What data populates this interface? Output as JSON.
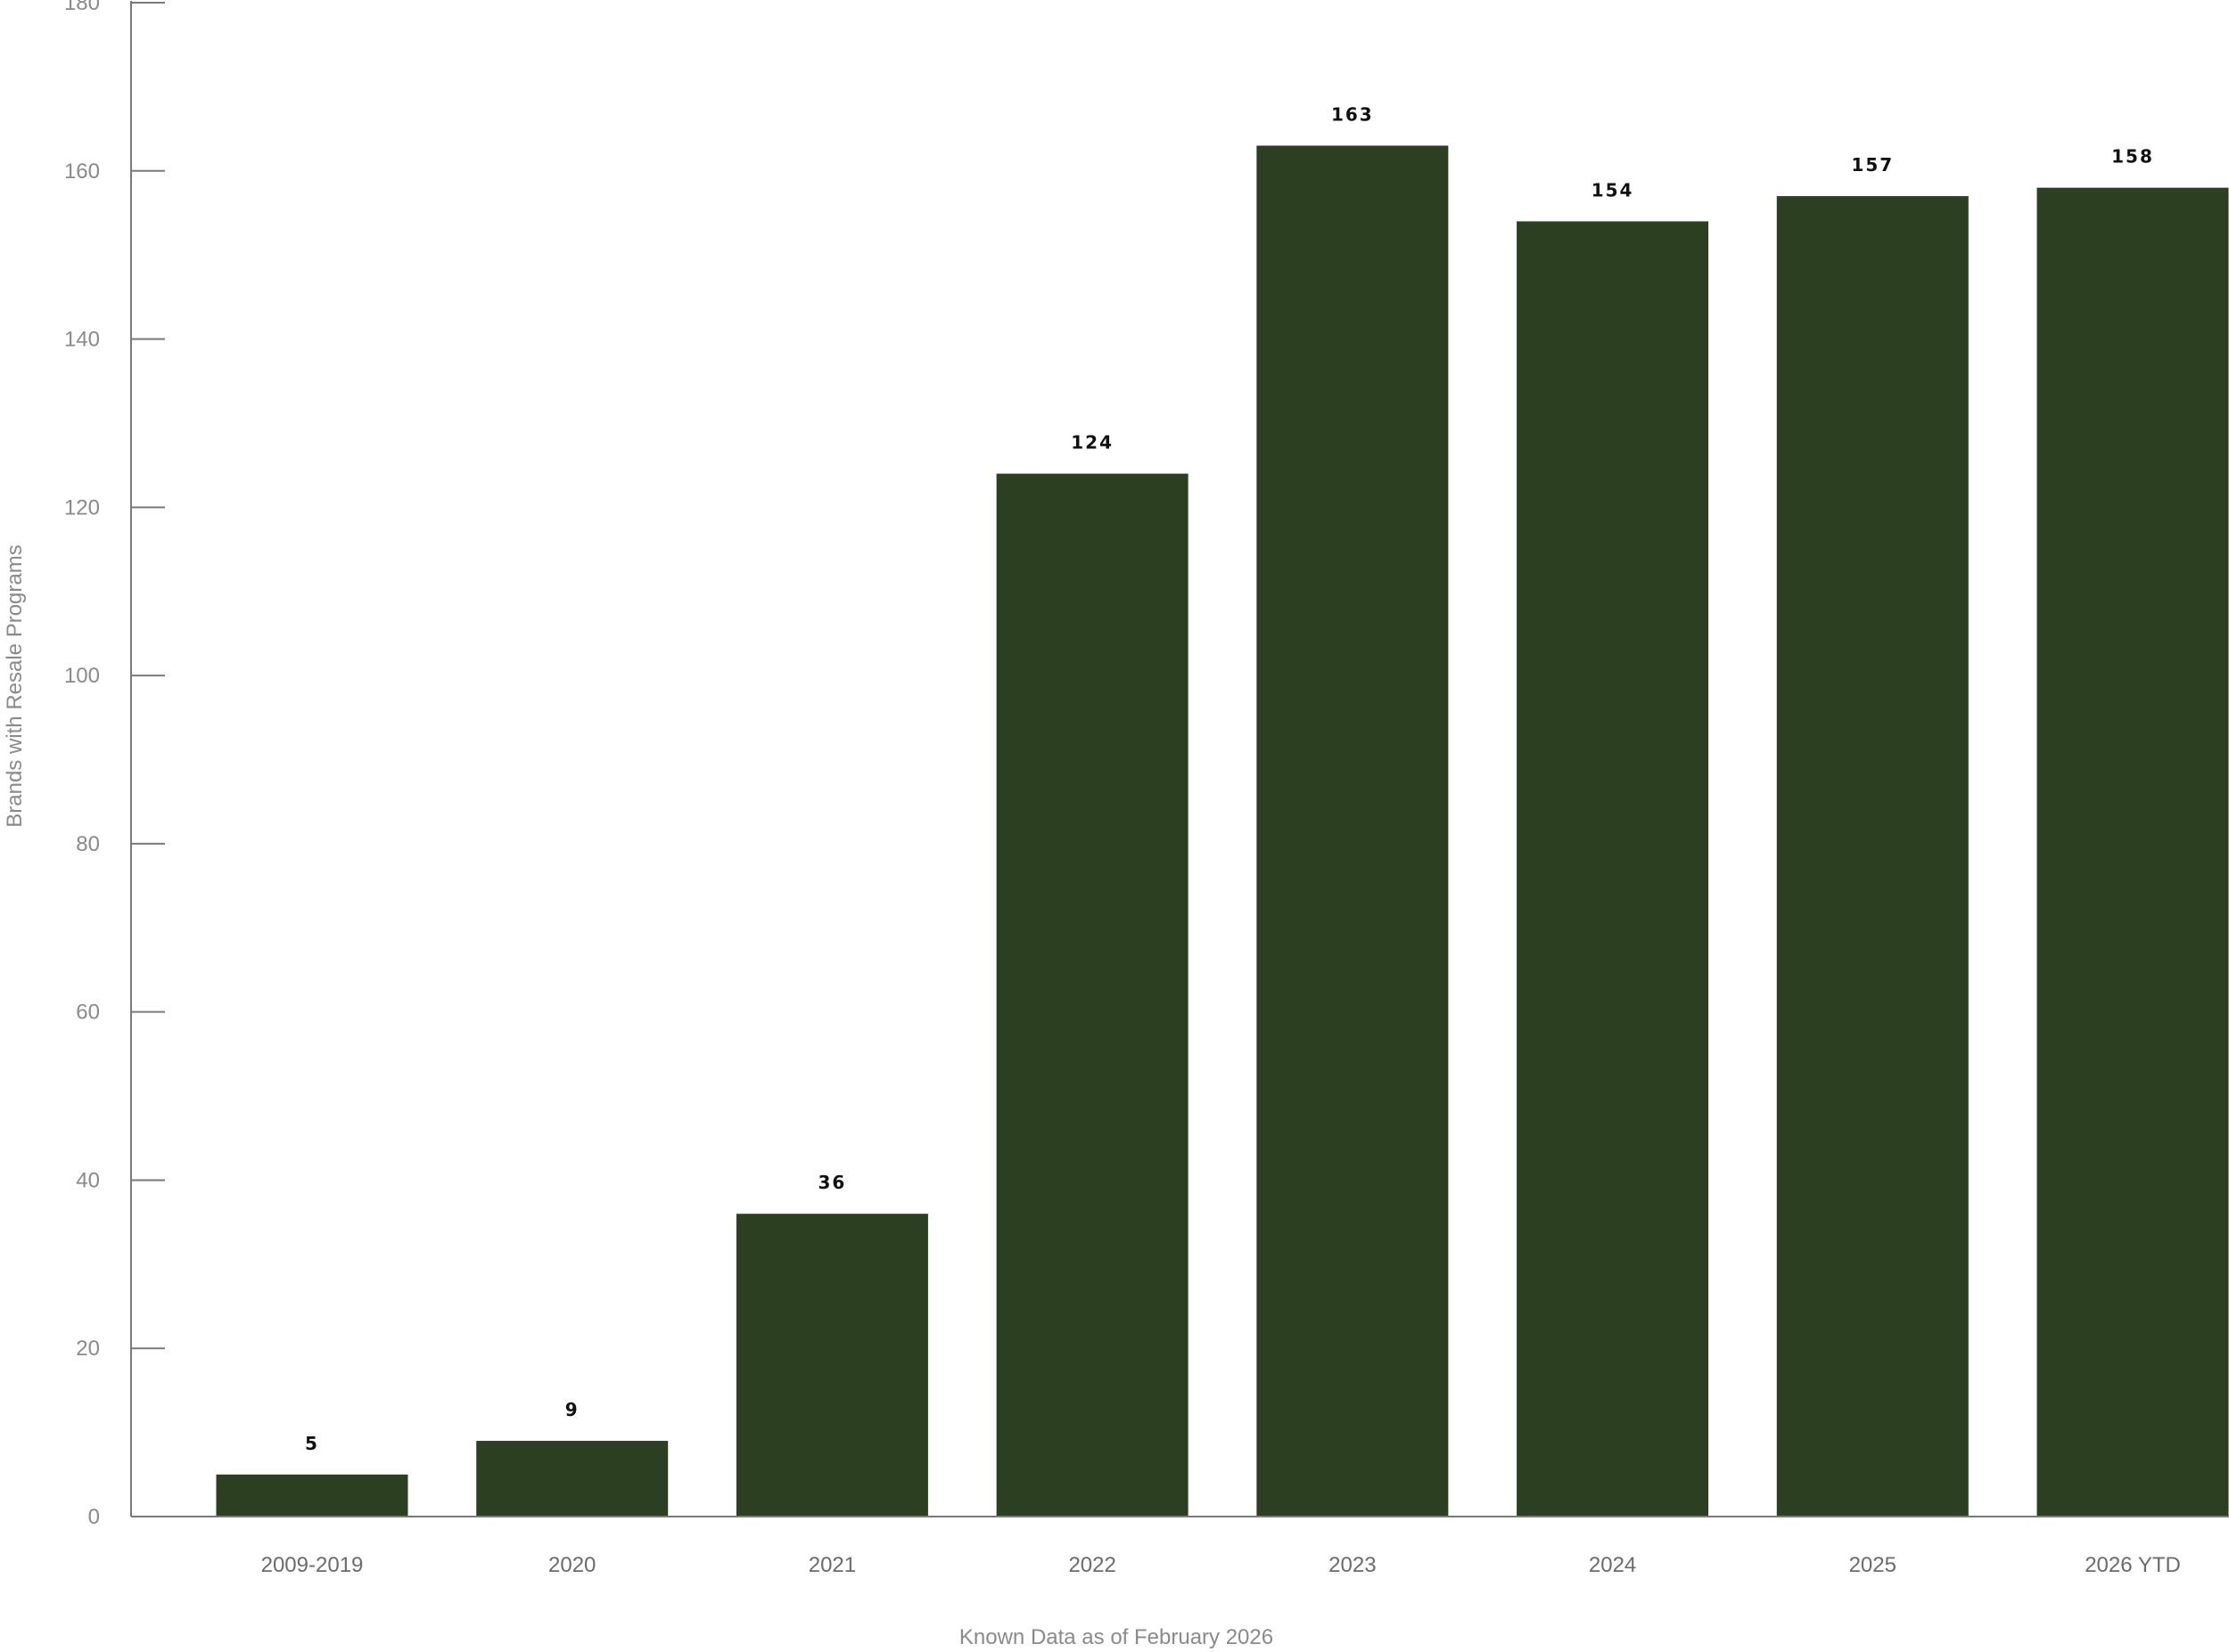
{
  "chart_data": {
    "type": "bar",
    "categories": [
      "2009-2019",
      "2020",
      "2021",
      "2022",
      "2023",
      "2024",
      "2025",
      "2026 YTD"
    ],
    "values": [
      5,
      9,
      36,
      124,
      163,
      154,
      157,
      158
    ],
    "data_labels": [
      "5",
      "9",
      "36",
      "124",
      "163",
      "154",
      "157",
      "158"
    ],
    "title": "",
    "xlabel": "Known Data as of February 2026",
    "ylabel": "Brands with Resale Programs",
    "ylim": [
      0,
      180
    ],
    "yticks": [
      0,
      20,
      40,
      60,
      80,
      100,
      120,
      140,
      160,
      180
    ],
    "grid": false,
    "legend": "none",
    "bar_color": "#2c4021",
    "axis_color": "#7a7a7a"
  }
}
